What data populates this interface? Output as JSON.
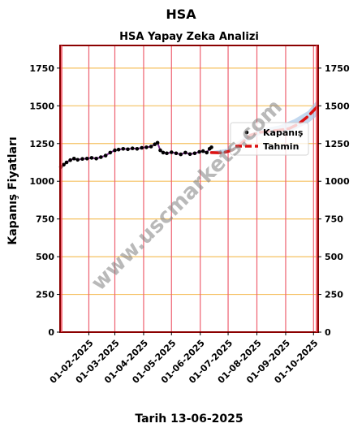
{
  "chart_data": {
    "type": "line",
    "suptitle": "HSA",
    "title": "HSA Yapay Zeka Analizi",
    "ylabel": "Kapanış Fiyatları",
    "xlabel": "Tarih 13-06-2025",
    "ylim": [
      0,
      1900
    ],
    "yticks": [
      0,
      250,
      500,
      750,
      1000,
      1250,
      1500,
      1750
    ],
    "xlim": [
      "2025-01-01",
      "2025-10-06"
    ],
    "xticks": [
      "2025-02-01",
      "2025-03-01",
      "2025-04-01",
      "2025-05-01",
      "2025-06-01",
      "2025-07-01",
      "2025-08-01",
      "2025-09-01",
      "2025-10-01"
    ],
    "xtick_labels": [
      "01-02-2025",
      "01-03-2025",
      "01-04-2025",
      "01-05-2025",
      "01-06-2025",
      "01-07-2025",
      "01-08-2025",
      "01-09-2025",
      "01-10-2025"
    ],
    "grid": true,
    "legend_position": "right",
    "series": [
      {
        "name": "Kapanış",
        "style": "points",
        "color": "#000000",
        "x": [
          "2025-01-02",
          "2025-01-05",
          "2025-01-08",
          "2025-01-12",
          "2025-01-16",
          "2025-01-20",
          "2025-01-25",
          "2025-01-30",
          "2025-02-04",
          "2025-02-09",
          "2025-02-14",
          "2025-02-19",
          "2025-02-24",
          "2025-03-01",
          "2025-03-05",
          "2025-03-10",
          "2025-03-15",
          "2025-03-20",
          "2025-03-25",
          "2025-03-30",
          "2025-04-04",
          "2025-04-09",
          "2025-04-13",
          "2025-04-16",
          "2025-04-19",
          "2025-04-22",
          "2025-04-26",
          "2025-05-01",
          "2025-05-06",
          "2025-05-11",
          "2025-05-16",
          "2025-05-21",
          "2025-05-26",
          "2025-05-31",
          "2025-06-04",
          "2025-06-08",
          "2025-06-11",
          "2025-06-13"
        ],
        "y": [
          1095,
          1110,
          1125,
          1140,
          1150,
          1142,
          1148,
          1150,
          1155,
          1150,
          1160,
          1170,
          1190,
          1205,
          1210,
          1215,
          1212,
          1218,
          1215,
          1222,
          1225,
          1230,
          1245,
          1255,
          1205,
          1190,
          1185,
          1192,
          1185,
          1178,
          1190,
          1180,
          1185,
          1195,
          1200,
          1190,
          1215,
          1225
        ]
      },
      {
        "name": "Tahmin",
        "style": "dashed",
        "color": "#dd1111",
        "x": [
          "2025-06-13",
          "2025-06-25",
          "2025-07-05",
          "2025-07-15",
          "2025-07-25",
          "2025-08-05",
          "2025-08-15",
          "2025-08-25",
          "2025-09-05",
          "2025-09-15",
          "2025-09-25",
          "2025-10-06"
        ],
        "y": [
          1190,
          1188,
          1205,
          1250,
          1305,
          1325,
          1332,
          1338,
          1350,
          1380,
          1430,
          1500
        ]
      }
    ],
    "forecast_band": {
      "x": [
        "2025-06-13",
        "2025-07-01",
        "2025-07-20",
        "2025-08-05",
        "2025-08-25",
        "2025-09-10",
        "2025-09-25",
        "2025-10-06"
      ],
      "upper": [
        1200,
        1215,
        1300,
        1345,
        1370,
        1410,
        1465,
        1545
      ],
      "lower": [
        1180,
        1185,
        1255,
        1310,
        1320,
        1340,
        1385,
        1440
      ],
      "color": "#aac8e8"
    },
    "watermark": "www.uscmarkets.com"
  }
}
